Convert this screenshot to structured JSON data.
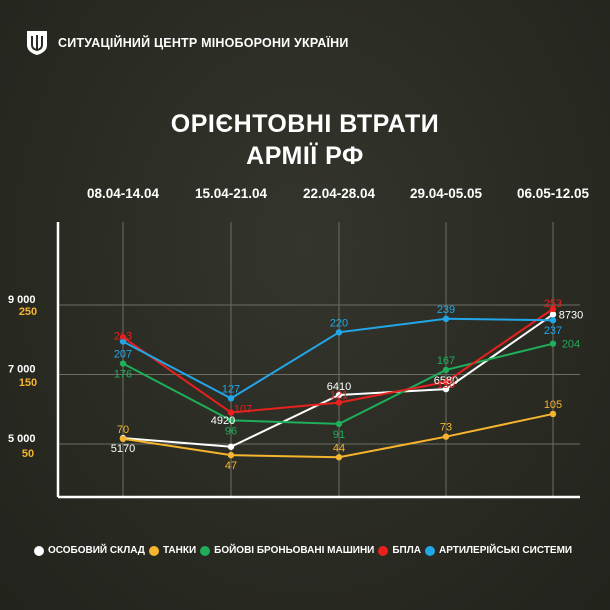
{
  "header": {
    "org_name": "СИТУАЦІЙНИЙ ЦЕНТР МІНОБОРОНИ УКРАЇНИ",
    "emblem_icon": "trident-emblem-icon"
  },
  "title": {
    "line1": "ОРІЄНТОВНІ ВТРАТИ",
    "line2": "АРМІЇ РФ"
  },
  "chart_data": {
    "type": "line",
    "categories": [
      "08.04-14.04",
      "15.04-21.04",
      "22.04-28.04",
      "29.04-05.05",
      "06.05-12.05"
    ],
    "title": "ОРІЄНТОВНІ ВТРАТИ АРМІЇ РФ",
    "grid": true,
    "legend_position": "bottom",
    "axes": {
      "personnel": {
        "ticks": [
          5000,
          7000,
          9000
        ],
        "tick_labels": [
          "5 000",
          "7 000",
          "9 000"
        ]
      },
      "equipment": {
        "ticks": [
          50,
          150,
          250
        ],
        "tick_labels": [
          "50",
          "150",
          "250"
        ]
      }
    },
    "series": [
      {
        "name": "ОСОБОВИЙ СКЛАД",
        "axis": "personnel",
        "color": "#ffffff",
        "values": [
          5170,
          4920,
          6410,
          6580,
          8730
        ]
      },
      {
        "name": "ТАНКИ",
        "axis": "equipment",
        "color": "#f5b52e",
        "values": [
          70,
          47,
          44,
          73,
          105
        ]
      },
      {
        "name": "БОЙОВІ БРОНЬОВАНІ МАШИНИ",
        "axis": "equipment",
        "color": "#1fae5a",
        "values": [
          176,
          96,
          91,
          167,
          204
        ]
      },
      {
        "name": "БПЛА",
        "axis": "equipment",
        "color": "#e8211e",
        "values": [
          213,
          107,
          121,
          150,
          253
        ]
      },
      {
        "name": "АРТИЛЕРІЙСЬКІ СИСТЕМИ",
        "axis": "equipment",
        "color": "#23a6e8",
        "values": [
          207,
          127,
          220,
          239,
          237
        ]
      }
    ]
  }
}
